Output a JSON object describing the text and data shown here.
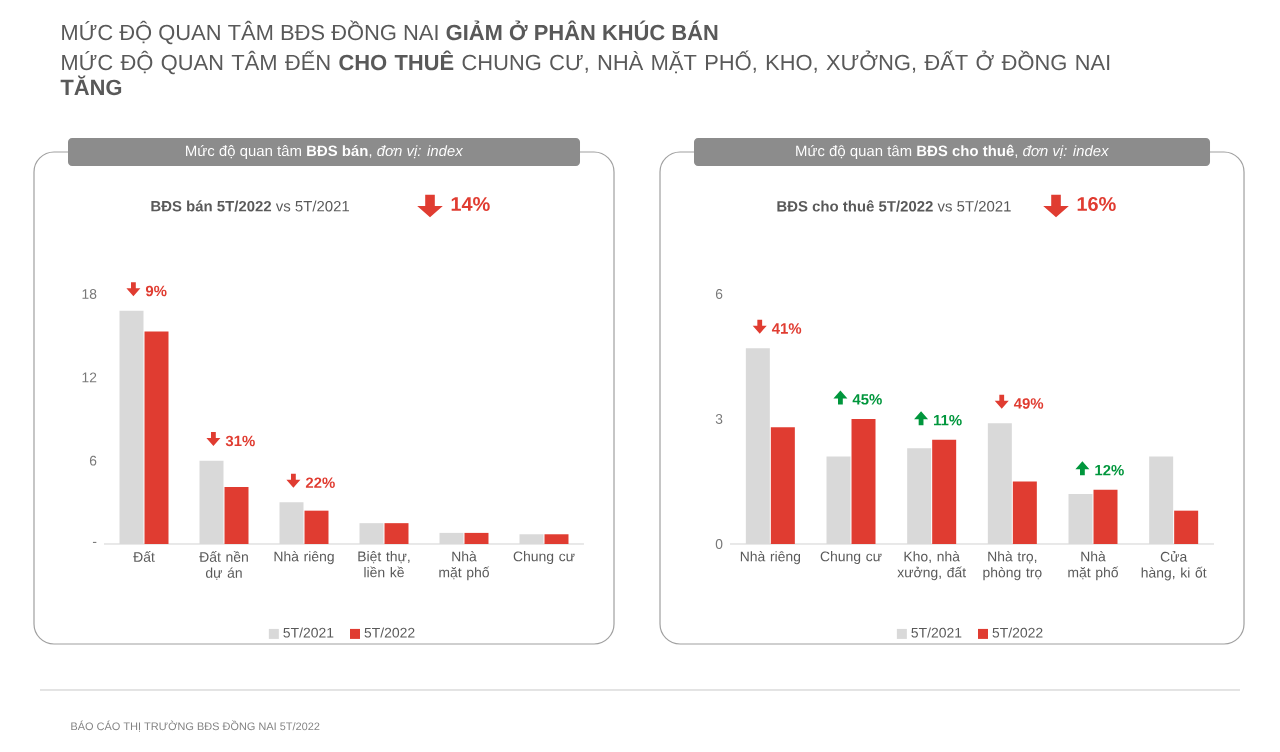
{
  "chart_data": [
    {
      "type": "bar",
      "title": "MỨC ĐỘ QUAN TÂM BĐS ĐỒNG NAI **GIẢM Ở PHÂN KHÚC BÁN**",
      "subtitle": "MỨC ĐỘ QUAN TÂM ĐẾN **CHO THUÊ** CHUNG CƯ, NHÀ MẶT PHỐ, KHO, XƯỞNG, ĐẤT Ở ĐỒNG NAI **TĂNG**",
      "categories": [
        "Đất",
        "Đất nền dự án",
        "Nhà riêng",
        "Biệt thự, liền kề",
        "Nhà mặt phố",
        "Chung cư"
      ],
      "series": [
        {
          "name": "5T/2021",
          "color": "#d9d9d9",
          "values": [
            16.8,
            6.0,
            3.0,
            1.5,
            0.8,
            0.7
          ]
        },
        {
          "name": "5T/2022",
          "color": "#e03c31",
          "values": [
            15.3,
            4.1,
            2.4,
            1.5,
            0.8,
            0.7
          ]
        }
      ],
      "ylim": [
        0,
        18
      ],
      "yticks": [
        {
          "value": 0,
          "label": "-"
        },
        6,
        12,
        18
      ],
      "legend": "bottom",
      "grid": false,
      "annotations": [
        "Mức độ quan tâm **BĐS bán**, *đơn vị: index*",
        "**BĐS bán**   **5T/2022** vs 5T/2021",
        "14%",
        "BÁO CÁO THỊ TRƯỜNG BĐS ĐỒNG NAI 5T/2022",
        {
          "text": "9%",
          "x": "Đất",
          "y": 16.8
        },
        {
          "text": "31%",
          "x": "Đất nền dự án",
          "y": 6.0
        },
        {
          "text": "22%",
          "x": "Nhà riêng",
          "y": 3.0
        }
      ]
    },
    {
      "type": "bar",
      "categories": [
        "Nhà riêng",
        "Chung cư",
        "Kho, nhà xưởng, đất",
        "Nhà trọ, phòng trọ",
        "Nhà mặt phố",
        "Cửa hàng, ki ốt"
      ],
      "series": [
        {
          "name": "5T/2021",
          "color": "#d9d9d9",
          "values": [
            4.7,
            2.1,
            2.3,
            2.9,
            1.2,
            2.1
          ]
        },
        {
          "name": "5T/2022",
          "color": "#e03c31",
          "values": [
            2.8,
            3.0,
            2.5,
            1.5,
            1.3,
            0.8
          ]
        }
      ],
      "ylim": [
        0,
        6
      ],
      "yticks": [
        0,
        3,
        6
      ],
      "legend": "bottom",
      "grid": false,
      "annotations": [
        "Mức độ quan tâm **BĐS cho thuê**, *đơn vị: index*",
        "**BĐS cho thuê**   **5T/2022** vs 5T/2021",
        "16%",
        {
          "text": "41%",
          "x": "Nhà riêng",
          "y": 4.7
        },
        {
          "text": "45%",
          "x": "Chung cư",
          "y": 3.0
        },
        {
          "text": "11%",
          "x": "Kho, nhà xưởng, đất",
          "y": 2.5
        },
        {
          "text": "49%",
          "x": "Nhà trọ, phòng trọ",
          "y": 2.9
        },
        {
          "text": "12%",
          "x": "Nhà mặt phố",
          "y": 1.3
        }
      ]
    }
  ]
}
